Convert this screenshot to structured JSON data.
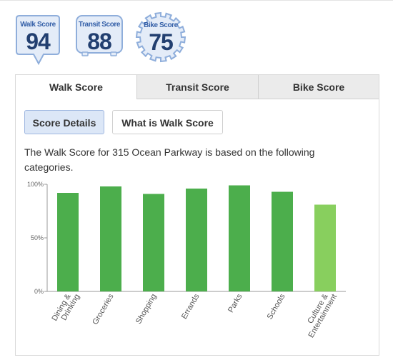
{
  "badges": [
    {
      "label": "Walk Score",
      "value": "94"
    },
    {
      "label": "Transit Score",
      "value": "88"
    },
    {
      "label": "Bike Score",
      "value": "75"
    }
  ],
  "tabs": [
    {
      "label": "Walk Score",
      "active": true
    },
    {
      "label": "Transit Score",
      "active": false
    },
    {
      "label": "Bike Score",
      "active": false
    }
  ],
  "buttons": {
    "score_details": "Score Details",
    "what_is": "What is Walk Score"
  },
  "description": "The Walk Score for 315 Ocean Parkway is based on the following categories.",
  "colors": {
    "bar": "#4cae4c",
    "bar_light": "#88cf5e",
    "badge_fill": "#e4ecf8",
    "badge_stroke": "#8faedb"
  },
  "chart_data": {
    "type": "bar",
    "categories": [
      "Dining & Drinking",
      "Groceries",
      "Shopping",
      "Errands",
      "Parks",
      "Schools",
      "Culture & Entertainment"
    ],
    "values": [
      92,
      98,
      91,
      96,
      99,
      93,
      81
    ],
    "ylim": [
      0,
      100
    ],
    "yticks": [
      0,
      50,
      100
    ],
    "ytick_labels": [
      "0%",
      "50%",
      "100%"
    ],
    "grid": false
  }
}
